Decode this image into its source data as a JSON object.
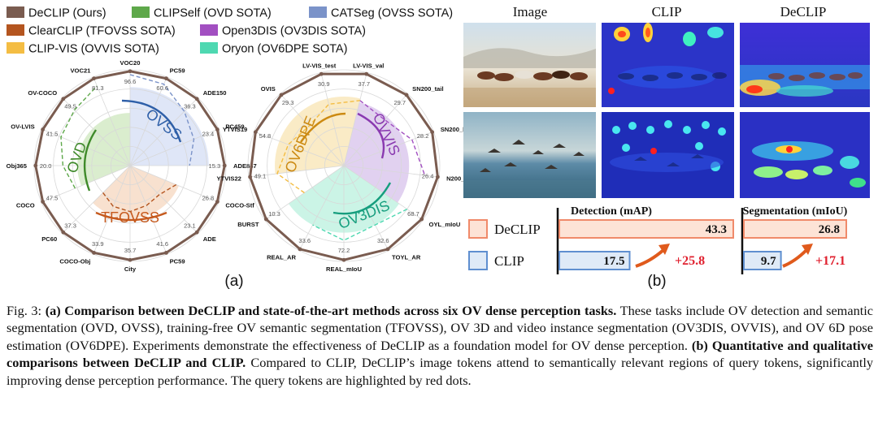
{
  "legend": [
    {
      "label": "DeCLIP (Ours)",
      "color": "#7a5c50"
    },
    {
      "label": "CLIPSelf (OVD SOTA)",
      "color": "#5ea84a"
    },
    {
      "label": "CATSeg (OVSS SOTA)",
      "color": "#7b93c9"
    },
    {
      "label": "ClearCLIP (TFOVSS SOTA)",
      "color": "#b4551f"
    },
    {
      "label": "Open3DIS (OV3DIS SOTA)",
      "color": "#a24fc1"
    },
    {
      "label": "CLIP-VIS (OVVIS SOTA)",
      "color": "#f4bd43"
    },
    {
      "label": "Oryon (OV6DPE SOTA)",
      "color": "#4ed8b1"
    }
  ],
  "radar1": {
    "axes": [
      "VOC20",
      "PC59",
      "ADE150",
      "PC459",
      "ADE847",
      "COCO-Stf",
      "ADE",
      "PC59",
      "City",
      "COCO-Obj",
      "PC60",
      "COCO",
      "Obj365",
      "OV-LVIS",
      "OV-COCO",
      "VOC21"
    ],
    "values": [
      "96.6",
      "60.6",
      "36.3",
      "23.4",
      "15.3",
      "26.8",
      "23.1",
      "41.6",
      "35.7",
      "33.9",
      "37.3",
      "47.5",
      "20.0",
      "41.5",
      "49.5",
      "81.3"
    ],
    "tasks": [
      "OVSS",
      "OVD",
      "TFOVSS"
    ]
  },
  "radar2": {
    "axes": [
      "LV-VIS_val",
      "SN200_tail",
      "SN200_head",
      "N200_ap",
      "OYL_mIoU",
      "TOYL_AR",
      "REAL_mIoU",
      "REAL_AR",
      "BURST",
      "YTVIS22",
      "YTVIS19",
      "OVIS",
      "LV-VIS_test"
    ],
    "values": [
      "37.7",
      "29.7",
      "28.2",
      "26.4",
      "68.7",
      "32.6",
      "72.2",
      "33.6",
      "10.3",
      "49.1",
      "54.8",
      "29.3",
      "30.9"
    ],
    "tasks": [
      "OVVIS",
      "OV3DIS",
      "OV6DPE"
    ]
  },
  "panel_a_label": "(a)",
  "panel_b_label": "(b)",
  "col_headers": [
    "Image",
    "CLIP",
    "DeCLIP"
  ],
  "bars": {
    "detection_title": "Detection (mAP)",
    "segmentation_title": "Segmentation (mIoU)",
    "declip_label": "DeCLIP",
    "clip_label": "CLIP",
    "det_declip": "43.3",
    "det_clip": "17.5",
    "det_gain": "+25.8",
    "seg_declip": "26.8",
    "seg_clip": "9.7",
    "seg_gain": "+17.1"
  },
  "caption": {
    "prefix": "Fig. 3: ",
    "bold_a": "(a) Comparison between DeCLIP and state-of-the-art methods across six OV dense perception tasks.",
    "text_a": " These tasks include OV detection and semantic segmentation (OVD, OVSS), training-free OV semantic segmentation (TFOVSS), OV 3D and video instance segmentation (OV3DIS, OVVIS), and OV 6D pose estimation (OV6DPE). Experiments demonstrate the effectiveness of DeCLIP as a foundation model for OV dense perception. ",
    "bold_b": "(b) Quantitative and qualitative comparisons between DeCLIP and CLIP.",
    "text_b": " Compared to CLIP, DeCLIP’s image tokens attend to semantically relevant regions of query tokens, significantly improving dense perception performance. The query tokens are highlighted by red dots."
  }
}
